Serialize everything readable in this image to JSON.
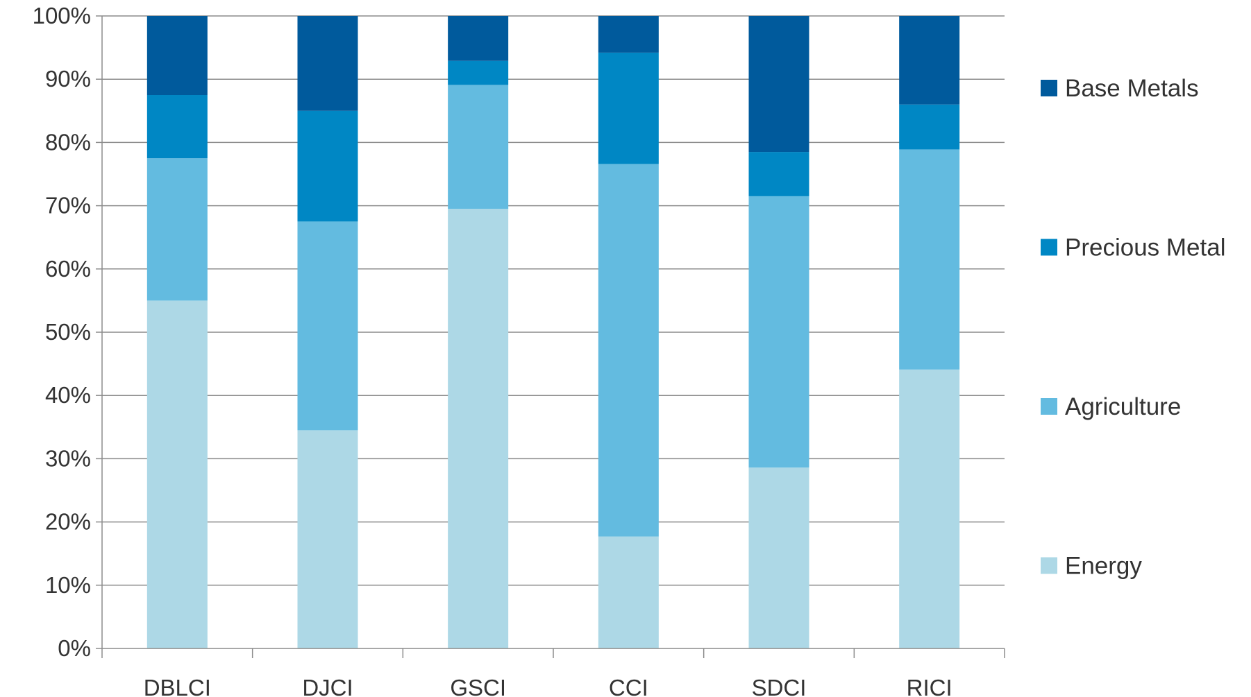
{
  "chart_data": {
    "type": "bar",
    "stacked": true,
    "percent": true,
    "categories": [
      "DBLCI",
      "DJCI",
      "GSCI",
      "CCI",
      "SDCI",
      "RICI"
    ],
    "series": [
      {
        "name": "Energy",
        "color": "#add8e6",
        "values": [
          55.0,
          34.5,
          69.5,
          17.7,
          28.6,
          44.1
        ]
      },
      {
        "name": "Agriculture",
        "color": "#63bbe0",
        "values": [
          22.5,
          33.0,
          19.6,
          58.9,
          42.9,
          34.8
        ]
      },
      {
        "name": "Precious Metal",
        "color": "#0087c4",
        "values": [
          10.0,
          17.5,
          3.8,
          17.6,
          7.0,
          7.1
        ]
      },
      {
        "name": "Base Metals",
        "color": "#005a9c",
        "values": [
          12.5,
          15.0,
          7.1,
          5.8,
          21.5,
          14.0
        ]
      }
    ],
    "y_ticks": [
      "0%",
      "10%",
      "20%",
      "30%",
      "40%",
      "50%",
      "60%",
      "70%",
      "80%",
      "90%",
      "100%"
    ],
    "ylim": [
      0,
      100
    ],
    "grid": true,
    "legend_position": "right",
    "title": "",
    "xlabel": "",
    "ylabel": ""
  }
}
